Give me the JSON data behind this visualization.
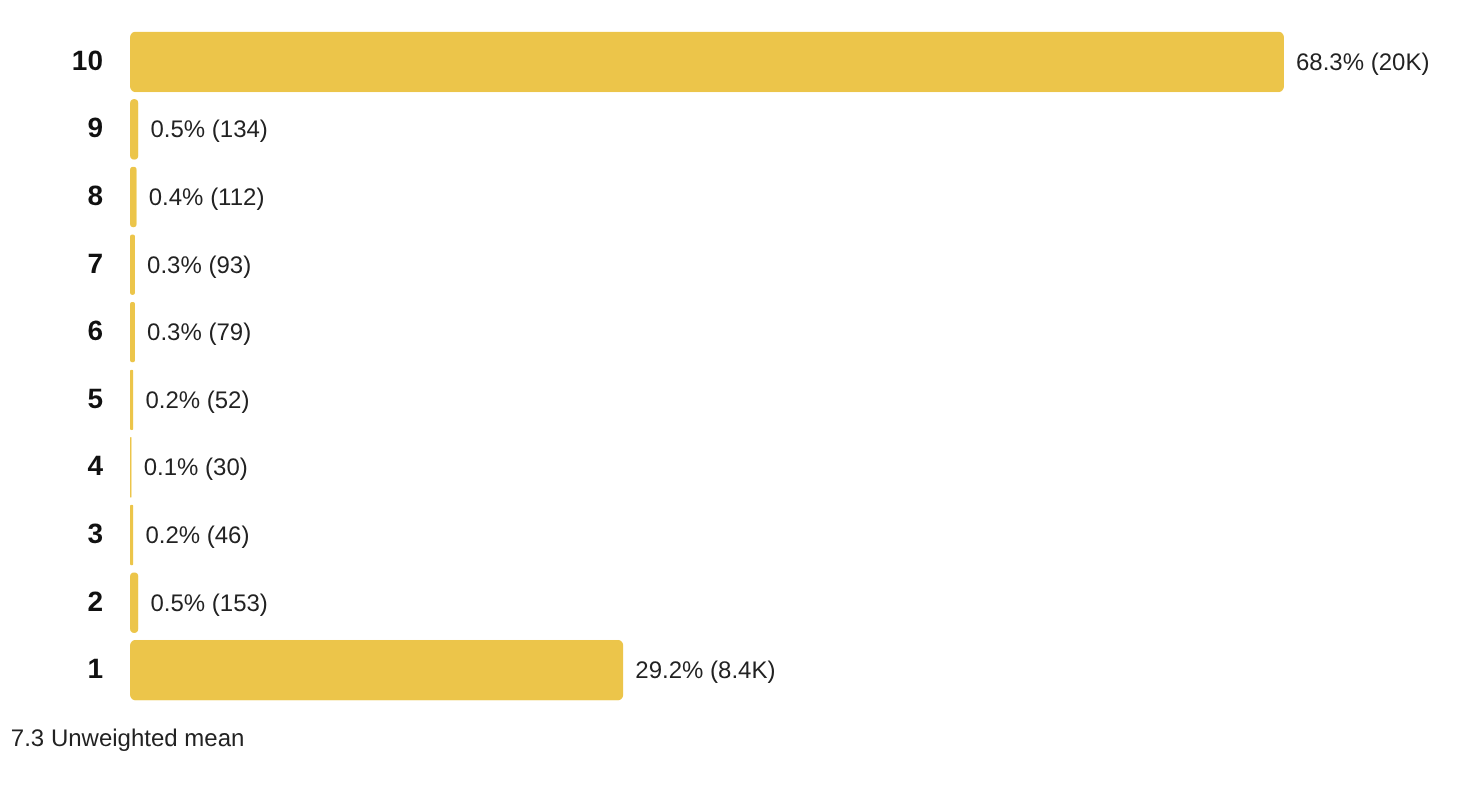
{
  "chart_data": {
    "type": "bar",
    "orientation": "horizontal",
    "categories": [
      "10",
      "9",
      "8",
      "7",
      "6",
      "5",
      "4",
      "3",
      "2",
      "1"
    ],
    "values": [
      68.3,
      0.5,
      0.4,
      0.3,
      0.3,
      0.2,
      0.1,
      0.2,
      0.5,
      29.2
    ],
    "value_labels": [
      "68.3% (20K)",
      "0.5% (134)",
      "0.4% (112)",
      "0.3% (93)",
      "0.3% (79)",
      "0.2% (52)",
      "0.1% (30)",
      "0.2% (46)",
      "0.5% (153)",
      "29.2% (8.4K)"
    ],
    "color": "#ecc54a",
    "grid": false,
    "annotations": [
      "7.3 Unweighted mean"
    ]
  }
}
